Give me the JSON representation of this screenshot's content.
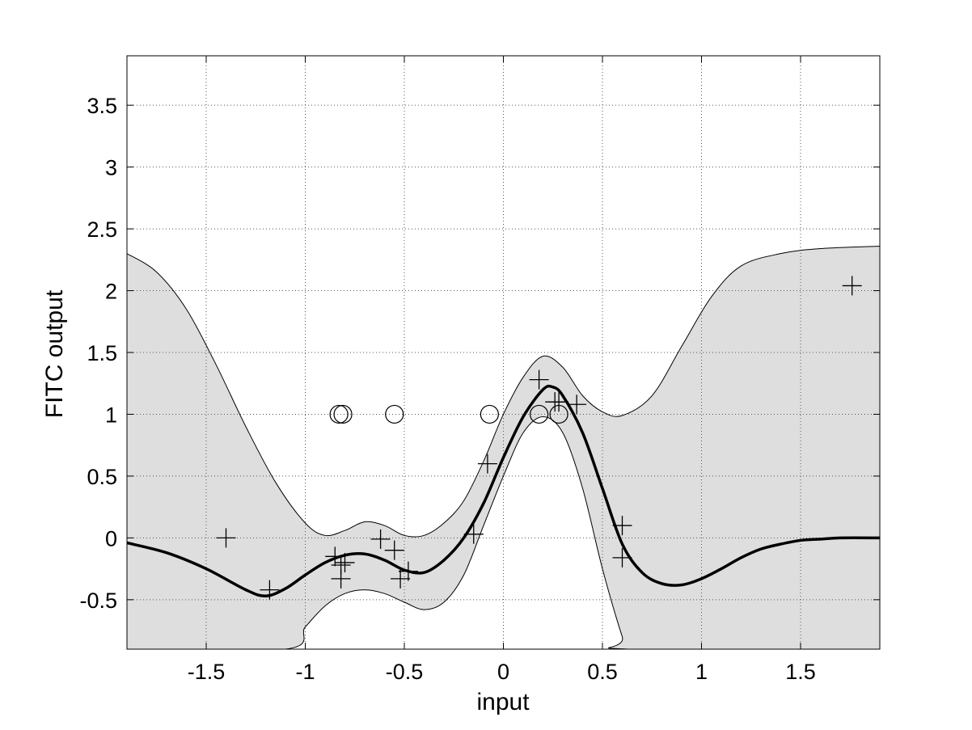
{
  "chart_data": {
    "type": "line",
    "xlabel": "input",
    "ylabel": "FITC output",
    "xlim": [
      -1.9,
      1.9
    ],
    "ylim": [
      -0.9,
      3.9
    ],
    "xticks": [
      -1.5,
      -1,
      -0.5,
      0,
      0.5,
      1,
      1.5
    ],
    "xtick_labels": [
      "-1.5",
      "-1",
      "-0.5",
      "0",
      "0.5",
      "1",
      "1.5"
    ],
    "yticks": [
      -0.5,
      0,
      0.5,
      1,
      1.5,
      2,
      2.5,
      3,
      3.5
    ],
    "ytick_labels": [
      "-0.5",
      "0",
      "0.5",
      "1",
      "1.5",
      "2",
      "2.5",
      "3",
      "3.5"
    ],
    "grid": true,
    "colors": {
      "band_fill": "#dedede",
      "line": "#000000",
      "grid": "#555555",
      "background": "#ffffff"
    },
    "series": [
      {
        "kind": "upper_bound",
        "x": [
          -1.9,
          -1.75,
          -1.6,
          -1.45,
          -1.3,
          -1.15,
          -1.0,
          -0.9,
          -0.8,
          -0.7,
          -0.6,
          -0.5,
          -0.4,
          -0.3,
          -0.2,
          -0.1,
          0.0,
          0.1,
          0.2,
          0.3,
          0.4,
          0.5,
          0.6,
          0.75,
          0.9,
          1.05,
          1.2,
          1.4,
          1.6,
          1.9
        ],
        "values": [
          2.3,
          2.15,
          1.85,
          1.4,
          0.9,
          0.45,
          0.12,
          0.02,
          0.06,
          0.13,
          0.1,
          0.02,
          0.02,
          0.12,
          0.3,
          0.62,
          1.0,
          1.3,
          1.47,
          1.38,
          1.15,
          1.02,
          0.99,
          1.15,
          1.55,
          1.95,
          2.2,
          2.3,
          2.34,
          2.36
        ]
      },
      {
        "kind": "lower_bound",
        "x": [
          -1.9,
          -1.1,
          -1.0,
          -0.9,
          -0.8,
          -0.7,
          -0.6,
          -0.5,
          -0.4,
          -0.3,
          -0.2,
          -0.1,
          0.0,
          0.1,
          0.2,
          0.3,
          0.4,
          0.5,
          0.6,
          0.63,
          1.9
        ],
        "values": [
          -0.9,
          -0.9,
          -0.72,
          -0.55,
          -0.45,
          -0.42,
          -0.45,
          -0.52,
          -0.58,
          -0.52,
          -0.3,
          0.1,
          0.5,
          0.85,
          0.98,
          0.85,
          0.4,
          -0.25,
          -0.8,
          -0.9,
          -0.9
        ]
      },
      {
        "kind": "mean",
        "x": [
          -1.9,
          -1.7,
          -1.5,
          -1.3,
          -1.2,
          -1.1,
          -1.0,
          -0.9,
          -0.8,
          -0.7,
          -0.6,
          -0.5,
          -0.4,
          -0.3,
          -0.2,
          -0.1,
          0.0,
          0.1,
          0.2,
          0.25,
          0.3,
          0.4,
          0.5,
          0.6,
          0.7,
          0.8,
          0.9,
          1.0,
          1.1,
          1.2,
          1.3,
          1.4,
          1.5,
          1.6,
          1.7,
          1.9
        ],
        "values": [
          -0.04,
          -0.12,
          -0.25,
          -0.42,
          -0.47,
          -0.41,
          -0.3,
          -0.2,
          -0.14,
          -0.13,
          -0.18,
          -0.26,
          -0.28,
          -0.18,
          0.0,
          0.28,
          0.65,
          0.98,
          1.2,
          1.22,
          1.15,
          0.85,
          0.4,
          -0.05,
          -0.28,
          -0.37,
          -0.38,
          -0.33,
          -0.25,
          -0.16,
          -0.09,
          -0.05,
          -0.02,
          -0.01,
          0.0,
          0.0
        ]
      }
    ],
    "data_points": {
      "marker": "+",
      "x": [
        -1.4,
        -1.18,
        -0.85,
        -0.82,
        -0.82,
        -0.8,
        -0.62,
        -0.55,
        -0.52,
        -0.48,
        -0.15,
        -0.08,
        0.18,
        0.26,
        0.28,
        0.37,
        0.6,
        0.6,
        1.76
      ],
      "values": [
        0.0,
        -0.42,
        -0.15,
        -0.22,
        -0.33,
        -0.2,
        -0.01,
        -0.1,
        -0.33,
        -0.27,
        0.03,
        0.6,
        1.28,
        1.1,
        1.1,
        1.08,
        0.1,
        -0.16,
        2.04
      ]
    },
    "inducing_points": {
      "marker": "o",
      "x": [
        -0.83,
        -0.81,
        -0.55,
        -0.07,
        0.18,
        0.28
      ],
      "values": [
        1.0,
        1.0,
        1.0,
        1.0,
        1.0,
        1.0
      ]
    }
  }
}
